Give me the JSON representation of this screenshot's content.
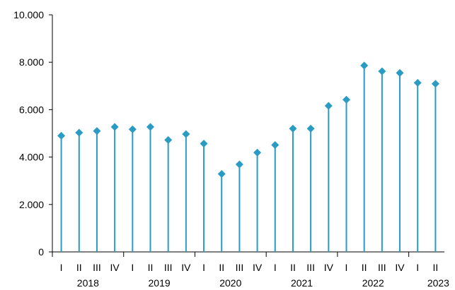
{
  "chart_data": {
    "type": "line",
    "style": "lollipop",
    "color": "#2a9cc4",
    "categories": [
      "I",
      "II",
      "III",
      "IV",
      "I",
      "II",
      "III",
      "IV",
      "I",
      "II",
      "III",
      "IV",
      "I",
      "II",
      "III",
      "IV",
      "I",
      "II",
      "III",
      "IV",
      "I",
      "II"
    ],
    "years": [
      {
        "label": "2018",
        "start": 0,
        "end": 3
      },
      {
        "label": "2019",
        "start": 4,
        "end": 7
      },
      {
        "label": "2020",
        "start": 8,
        "end": 11
      },
      {
        "label": "2021",
        "start": 12,
        "end": 15
      },
      {
        "label": "2022",
        "start": 16,
        "end": 19
      },
      {
        "label": "2023",
        "start": 20,
        "end": 21
      }
    ],
    "values": [
      4900,
      5030,
      5100,
      5270,
      5170,
      5270,
      4720,
      4970,
      4570,
      3290,
      3690,
      4190,
      4510,
      5200,
      5200,
      6160,
      6420,
      7860,
      7620,
      7550,
      7130,
      7090
    ],
    "ylim": [
      0,
      10000
    ],
    "yticks": [
      0,
      2000,
      4000,
      6000,
      8000,
      10000
    ],
    "ytick_labels": [
      "0",
      "2.000",
      "4.000",
      "6.000",
      "8.000",
      "10.000"
    ],
    "title": "",
    "xlabel": "",
    "ylabel": "",
    "grid": false,
    "legend": "none"
  }
}
